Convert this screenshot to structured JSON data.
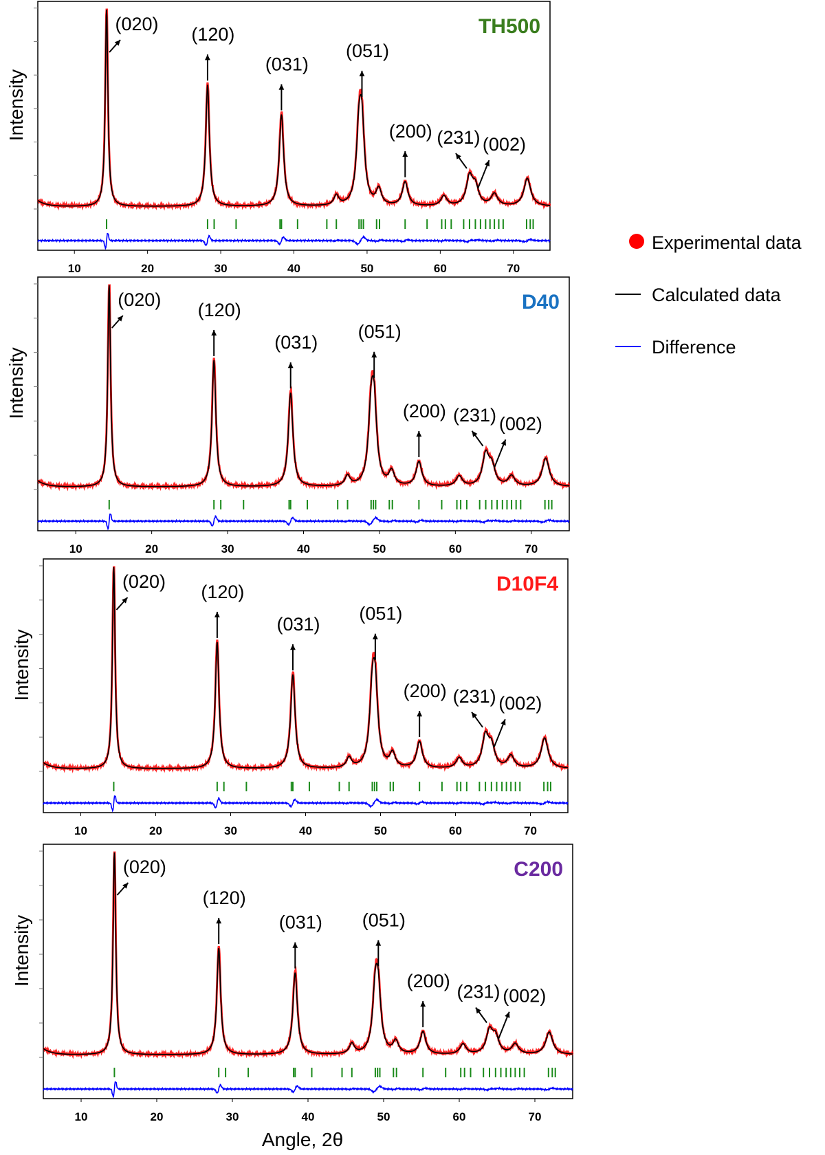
{
  "figure": {
    "ylabel": "Intensity",
    "xlabel": "Angle, 2θ",
    "legend": {
      "position": "right",
      "items": [
        {
          "label": "Experimental data",
          "marker": "dot",
          "color": "#ff0000"
        },
        {
          "label": "Calculated data",
          "marker": "line",
          "color": "#000000"
        },
        {
          "label": "Difference",
          "marker": "line",
          "color": "#0000ff"
        }
      ]
    },
    "reflection_tick_color": "#1a8a1a"
  },
  "chart_data": [
    {
      "type": "line",
      "panel_label": "TH500",
      "label_color": "#3a7d1e",
      "xlim": [
        5,
        75
      ],
      "xticks": [
        10,
        20,
        30,
        40,
        50,
        60,
        70
      ],
      "ylabel": "Intensity",
      "peaks": [
        {
          "x": 14.4,
          "rel_intensity": 1.0
        },
        {
          "x": 28.2,
          "rel_intensity": 0.61
        },
        {
          "x": 38.3,
          "rel_intensity": 0.46
        },
        {
          "x": 45.8,
          "rel_intensity": 0.05
        },
        {
          "x": 48.9,
          "rel_intensity": 0.33
        },
        {
          "x": 49.3,
          "rel_intensity": 0.35
        },
        {
          "x": 51.6,
          "rel_intensity": 0.08
        },
        {
          "x": 55.2,
          "rel_intensity": 0.12
        },
        {
          "x": 60.5,
          "rel_intensity": 0.05
        },
        {
          "x": 64.0,
          "rel_intensity": 0.14
        },
        {
          "x": 64.8,
          "rel_intensity": 0.09
        },
        {
          "x": 67.4,
          "rel_intensity": 0.06
        },
        {
          "x": 71.9,
          "rel_intensity": 0.14
        }
      ],
      "annotations": [
        {
          "label": "(020)",
          "peak_x": 14.4
        },
        {
          "label": "(120)",
          "peak_x": 28.2
        },
        {
          "label": "(031)",
          "peak_x": 38.3
        },
        {
          "label": "(051)",
          "peak_x": 49.3
        },
        {
          "label": "(200)",
          "peak_x": 55.2
        },
        {
          "label": "(231)",
          "peak_x": 64.0
        },
        {
          "label": "(002)",
          "peak_x": 64.8
        }
      ],
      "reflections": [
        14.4,
        28.2,
        29.1,
        32.1,
        38.1,
        38.3,
        40.5,
        44.5,
        45.8,
        48.9,
        49.2,
        49.5,
        51.3,
        51.7,
        55.2,
        58.2,
        60.2,
        60.7,
        61.5,
        63.2,
        64.0,
        64.8,
        65.5,
        66.2,
        66.8,
        67.4,
        68.0,
        68.6,
        71.8,
        72.3,
        72.7
      ]
    },
    {
      "type": "line",
      "panel_label": "D40",
      "label_color": "#1a72c2",
      "xlim": [
        5,
        75
      ],
      "xticks": [
        10,
        20,
        30,
        40,
        50,
        60,
        70
      ],
      "ylabel": "Intensity",
      "peaks": [
        {
          "x": 14.4,
          "rel_intensity": 1.0
        },
        {
          "x": 28.2,
          "rel_intensity": 0.62
        },
        {
          "x": 38.3,
          "rel_intensity": 0.46
        },
        {
          "x": 45.8,
          "rel_intensity": 0.05
        },
        {
          "x": 48.9,
          "rel_intensity": 0.32
        },
        {
          "x": 49.3,
          "rel_intensity": 0.34
        },
        {
          "x": 51.6,
          "rel_intensity": 0.07
        },
        {
          "x": 55.2,
          "rel_intensity": 0.12
        },
        {
          "x": 60.5,
          "rel_intensity": 0.05
        },
        {
          "x": 64.0,
          "rel_intensity": 0.15
        },
        {
          "x": 64.8,
          "rel_intensity": 0.09
        },
        {
          "x": 67.4,
          "rel_intensity": 0.05
        },
        {
          "x": 71.9,
          "rel_intensity": 0.14
        }
      ],
      "annotations": [
        {
          "label": "(020)",
          "peak_x": 14.4
        },
        {
          "label": "(120)",
          "peak_x": 28.2
        },
        {
          "label": "(031)",
          "peak_x": 38.3
        },
        {
          "label": "(051)",
          "peak_x": 49.3
        },
        {
          "label": "(200)",
          "peak_x": 55.2
        },
        {
          "label": "(231)",
          "peak_x": 64.0
        },
        {
          "label": "(002)",
          "peak_x": 64.8
        }
      ],
      "reflections": [
        14.4,
        28.2,
        29.1,
        32.1,
        38.1,
        38.3,
        40.5,
        44.5,
        45.8,
        48.9,
        49.2,
        49.5,
        51.3,
        51.7,
        55.2,
        58.2,
        60.2,
        60.7,
        61.5,
        63.2,
        64.0,
        64.8,
        65.5,
        66.2,
        66.8,
        67.4,
        68.0,
        68.6,
        71.8,
        72.3,
        72.7
      ]
    },
    {
      "type": "line",
      "panel_label": "D10F4",
      "label_color": "#ff1a1a",
      "xlim": [
        5,
        75
      ],
      "xticks": [
        10,
        20,
        30,
        40,
        50,
        60,
        70
      ],
      "ylabel": "Intensity",
      "peaks": [
        {
          "x": 14.4,
          "rel_intensity": 1.0
        },
        {
          "x": 28.2,
          "rel_intensity": 0.62
        },
        {
          "x": 38.3,
          "rel_intensity": 0.46
        },
        {
          "x": 45.8,
          "rel_intensity": 0.05
        },
        {
          "x": 48.9,
          "rel_intensity": 0.32
        },
        {
          "x": 49.3,
          "rel_intensity": 0.34
        },
        {
          "x": 51.6,
          "rel_intensity": 0.07
        },
        {
          "x": 55.2,
          "rel_intensity": 0.13
        },
        {
          "x": 60.5,
          "rel_intensity": 0.05
        },
        {
          "x": 64.0,
          "rel_intensity": 0.15
        },
        {
          "x": 64.8,
          "rel_intensity": 0.1
        },
        {
          "x": 67.4,
          "rel_intensity": 0.06
        },
        {
          "x": 71.9,
          "rel_intensity": 0.15
        }
      ],
      "annotations": [
        {
          "label": "(020)",
          "peak_x": 14.4
        },
        {
          "label": "(120)",
          "peak_x": 28.2
        },
        {
          "label": "(031)",
          "peak_x": 38.3
        },
        {
          "label": "(051)",
          "peak_x": 49.3
        },
        {
          "label": "(200)",
          "peak_x": 55.2
        },
        {
          "label": "(231)",
          "peak_x": 64.0
        },
        {
          "label": "(002)",
          "peak_x": 64.8
        }
      ],
      "reflections": [
        14.4,
        28.2,
        29.1,
        32.1,
        38.1,
        38.3,
        40.5,
        44.5,
        45.8,
        48.9,
        49.2,
        49.5,
        51.3,
        51.7,
        55.2,
        58.2,
        60.2,
        60.7,
        61.5,
        63.2,
        64.0,
        64.8,
        65.5,
        66.2,
        66.8,
        67.4,
        68.0,
        68.6,
        71.8,
        72.3,
        72.7
      ]
    },
    {
      "type": "line",
      "panel_label": "C200",
      "label_color": "#6a2aa0",
      "xlim": [
        5,
        75
      ],
      "xticks": [
        10,
        20,
        30,
        40,
        50,
        60,
        70
      ],
      "ylabel": "Intensity",
      "peaks": [
        {
          "x": 14.4,
          "rel_intensity": 1.0
        },
        {
          "x": 28.2,
          "rel_intensity": 0.52
        },
        {
          "x": 38.3,
          "rel_intensity": 0.4
        },
        {
          "x": 45.8,
          "rel_intensity": 0.05
        },
        {
          "x": 48.9,
          "rel_intensity": 0.28
        },
        {
          "x": 49.3,
          "rel_intensity": 0.26
        },
        {
          "x": 51.6,
          "rel_intensity": 0.06
        },
        {
          "x": 55.2,
          "rel_intensity": 0.11
        },
        {
          "x": 60.5,
          "rel_intensity": 0.05
        },
        {
          "x": 64.0,
          "rel_intensity": 0.11
        },
        {
          "x": 64.8,
          "rel_intensity": 0.08
        },
        {
          "x": 67.4,
          "rel_intensity": 0.05
        },
        {
          "x": 71.9,
          "rel_intensity": 0.11
        }
      ],
      "annotations": [
        {
          "label": "(020)",
          "peak_x": 14.4
        },
        {
          "label": "(120)",
          "peak_x": 28.2
        },
        {
          "label": "(031)",
          "peak_x": 38.3
        },
        {
          "label": "(051)",
          "peak_x": 49.3
        },
        {
          "label": "(200)",
          "peak_x": 55.2
        },
        {
          "label": "(231)",
          "peak_x": 64.0
        },
        {
          "label": "(002)",
          "peak_x": 64.8
        }
      ],
      "reflections": [
        14.4,
        28.2,
        29.1,
        32.1,
        38.1,
        38.3,
        40.5,
        44.5,
        45.8,
        48.9,
        49.2,
        49.5,
        51.3,
        51.7,
        55.2,
        58.2,
        60.2,
        60.7,
        61.5,
        63.2,
        64.0,
        64.8,
        65.5,
        66.2,
        66.8,
        67.4,
        68.0,
        68.6,
        71.8,
        72.3,
        72.7
      ]
    }
  ]
}
